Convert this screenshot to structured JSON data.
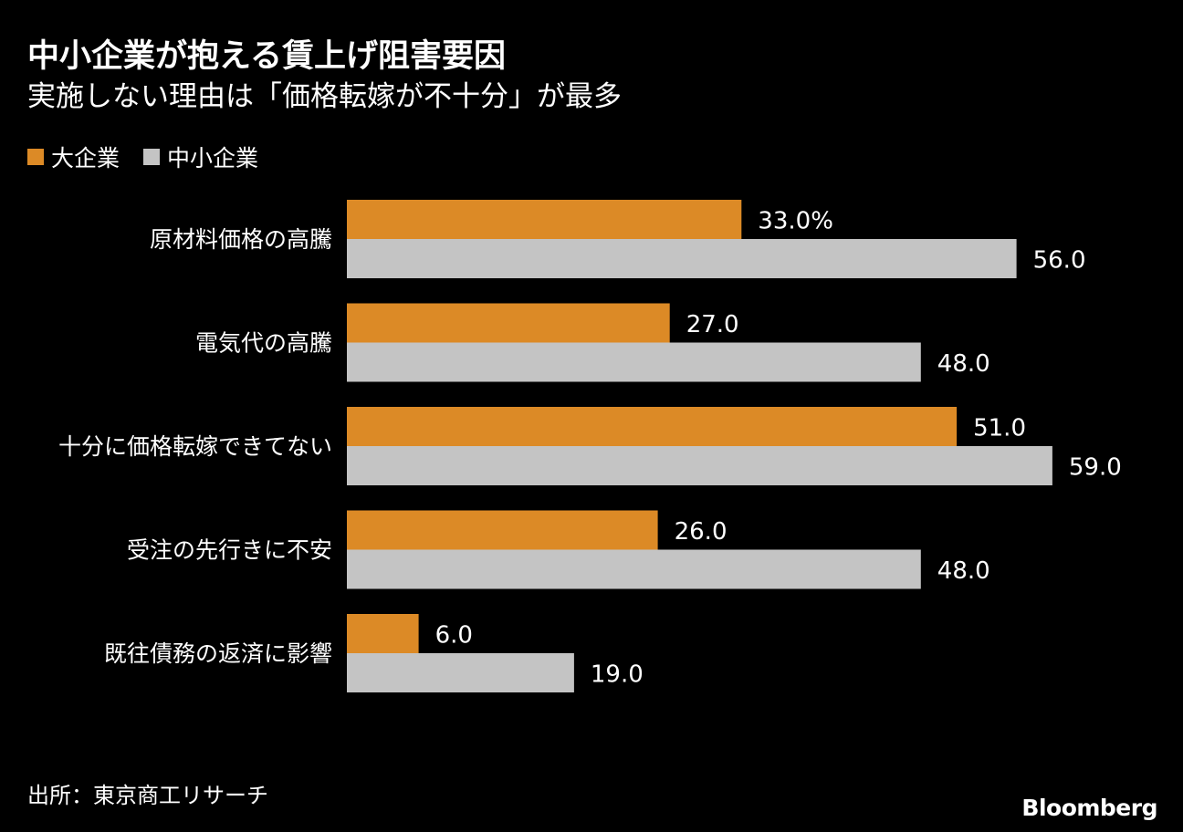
{
  "colors": {
    "background": "#000000",
    "text": "#ffffff",
    "large_company": "#dc8a26",
    "small_company": "#c4c4c4"
  },
  "header": {
    "title": "中小企業が抱える賃上げ阻害要因",
    "subtitle": "実施しない理由は「価格転嫁が不十分」が最多"
  },
  "legend": {
    "items": [
      {
        "label": "大企業",
        "color": "#dc8a26"
      },
      {
        "label": "中小企業",
        "color": "#c4c4c4"
      }
    ],
    "placement": "top-left"
  },
  "chart_data": {
    "type": "bar",
    "orientation": "horizontal",
    "categories": [
      "原材料価格の高騰",
      "電気代の高騰",
      "十分に価格転嫁できてない",
      "受注の先行きに不安",
      "既往債務の返済に影響"
    ],
    "series": [
      {
        "name": "大企業",
        "color": "#dc8a26",
        "values": [
          33.0,
          27.0,
          51.0,
          26.0,
          6.0
        ],
        "labels": [
          "33.0%",
          "27.0",
          "51.0",
          "26.0",
          "6.0"
        ]
      },
      {
        "name": "中小企業",
        "color": "#c4c4c4",
        "values": [
          56.0,
          48.0,
          59.0,
          48.0,
          19.0
        ],
        "labels": [
          "56.0",
          "48.0",
          "59.0",
          "48.0",
          "19.0"
        ]
      }
    ],
    "unit": "%",
    "xlim": [
      0,
      60
    ],
    "grid": false,
    "axis_ticks_shown": false
  },
  "footer": {
    "source": "出所：東京商工リサーチ",
    "brand": "Bloomberg"
  }
}
